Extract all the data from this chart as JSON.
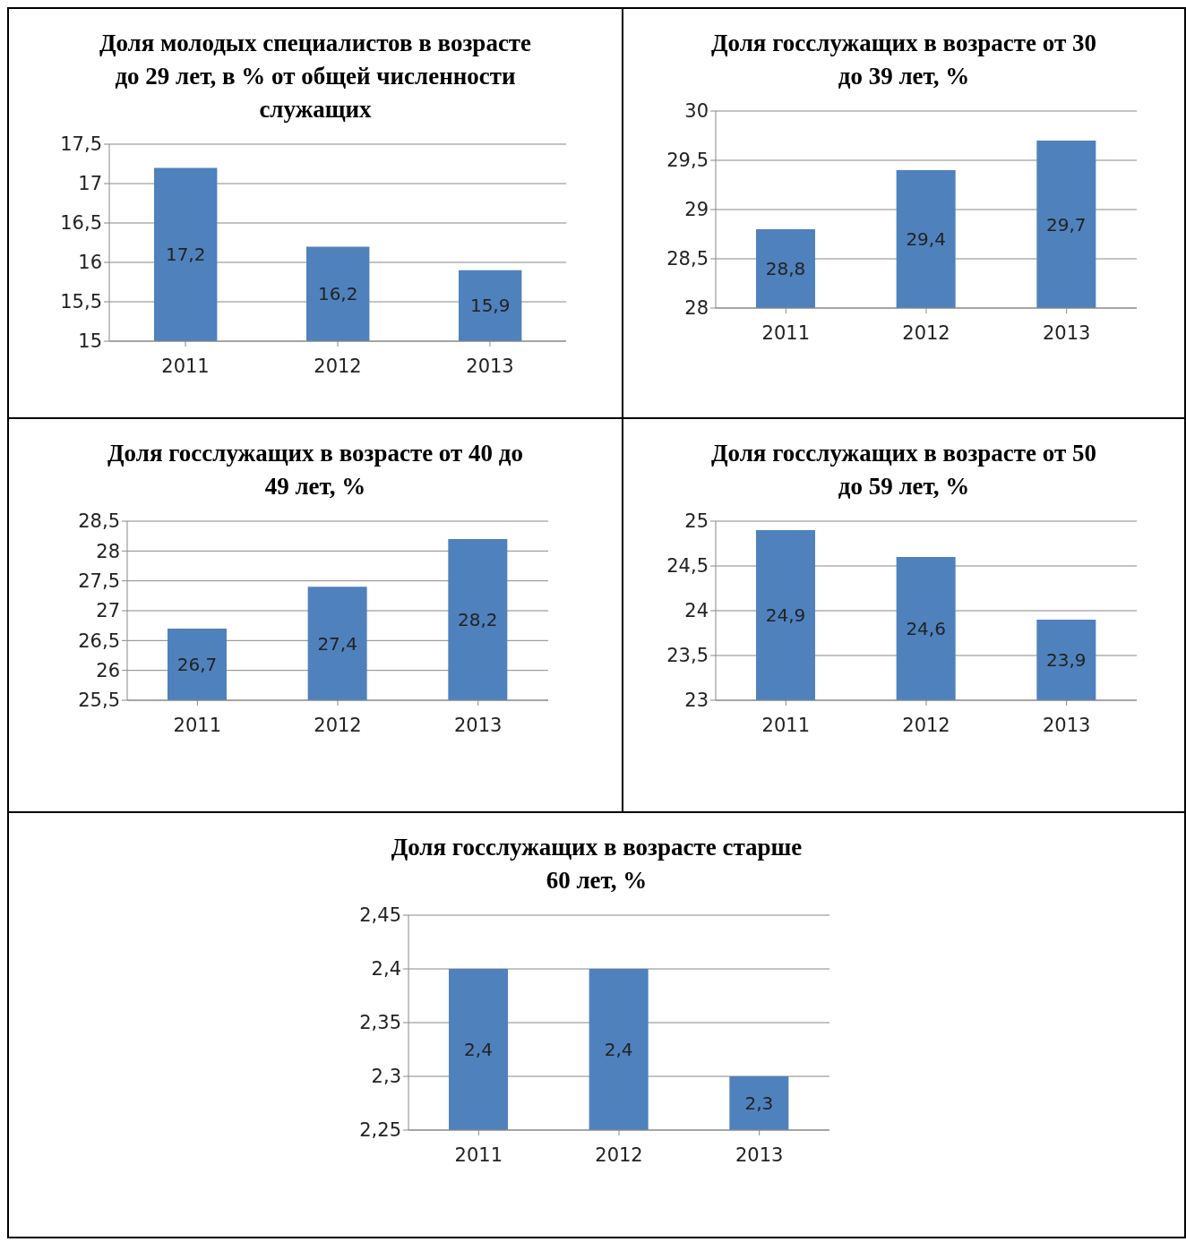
{
  "chart_data": [
    {
      "type": "bar",
      "title": "Доля молодых специалистов в возрасте до 29 лет, в % от общей численности служащих",
      "categories": [
        "2011",
        "2012",
        "2013"
      ],
      "values": [
        17.2,
        16.2,
        15.9
      ],
      "value_labels": [
        "17,2",
        "16,2",
        "15,9"
      ],
      "color": "#4f81bd",
      "ylim": [
        15,
        17.5
      ],
      "yticks": [
        {
          "value": 15,
          "label": "15"
        },
        {
          "value": 15.5,
          "label": "15,5"
        },
        {
          "value": 16,
          "label": "16"
        },
        {
          "value": 16.5,
          "label": "16,5"
        },
        {
          "value": 17,
          "label": "17"
        },
        {
          "value": 17.5,
          "label": "17,5"
        }
      ],
      "grid": "y"
    },
    {
      "type": "bar",
      "title": "Доля госслужащих  в возрасте от 30 до 39 лет, %",
      "categories": [
        "2011",
        "2012",
        "2013"
      ],
      "values": [
        28.8,
        29.4,
        29.7
      ],
      "value_labels": [
        "28,8",
        "29,4",
        "29,7"
      ],
      "color": "#4f81bd",
      "ylim": [
        28,
        30
      ],
      "yticks": [
        {
          "value": 28,
          "label": "28"
        },
        {
          "value": 28.5,
          "label": "28,5"
        },
        {
          "value": 29,
          "label": "29"
        },
        {
          "value": 29.5,
          "label": "29,5"
        },
        {
          "value": 30,
          "label": "30"
        }
      ],
      "grid": "y"
    },
    {
      "type": "bar",
      "title": "Доля госслужащих  в возрасте от 40 до 49 лет, %",
      "categories": [
        "2011",
        "2012",
        "2013"
      ],
      "values": [
        26.7,
        27.4,
        28.2
      ],
      "value_labels": [
        "26,7",
        "27,4",
        "28,2"
      ],
      "color": "#4f81bd",
      "ylim": [
        25.5,
        28.5
      ],
      "yticks": [
        {
          "value": 25.5,
          "label": "25,5"
        },
        {
          "value": 26,
          "label": "26"
        },
        {
          "value": 26.5,
          "label": "26,5"
        },
        {
          "value": 27,
          "label": "27"
        },
        {
          "value": 27.5,
          "label": "27,5"
        },
        {
          "value": 28,
          "label": "28"
        },
        {
          "value": 28.5,
          "label": "28,5"
        }
      ],
      "grid": "y"
    },
    {
      "type": "bar",
      "title": "Доля госслужащих  в возрасте от 50 до 59 лет, %",
      "categories": [
        "2011",
        "2012",
        "2013"
      ],
      "values": [
        24.9,
        24.6,
        23.9
      ],
      "value_labels": [
        "24,9",
        "24,6",
        "23,9"
      ],
      "color": "#4f81bd",
      "ylim": [
        23,
        25
      ],
      "yticks": [
        {
          "value": 23,
          "label": "23"
        },
        {
          "value": 23.5,
          "label": "23,5"
        },
        {
          "value": 24,
          "label": "24"
        },
        {
          "value": 24.5,
          "label": "24,5"
        },
        {
          "value": 25,
          "label": "25"
        }
      ],
      "grid": "y"
    },
    {
      "type": "bar",
      "title": "Доля госслужащих  в возрасте старше 60 лет, %",
      "categories": [
        "2011",
        "2012",
        "2013"
      ],
      "values": [
        2.4,
        2.4,
        2.3
      ],
      "value_labels": [
        "2,4",
        "2,4",
        "2,3"
      ],
      "color": "#4f81bd",
      "ylim": [
        2.25,
        2.45
      ],
      "yticks": [
        {
          "value": 2.25,
          "label": "2,25"
        },
        {
          "value": 2.3,
          "label": "2,3"
        },
        {
          "value": 2.35,
          "label": "2,35"
        },
        {
          "value": 2.4,
          "label": "2,4"
        },
        {
          "value": 2.45,
          "label": "2,45"
        }
      ],
      "grid": "y"
    }
  ]
}
